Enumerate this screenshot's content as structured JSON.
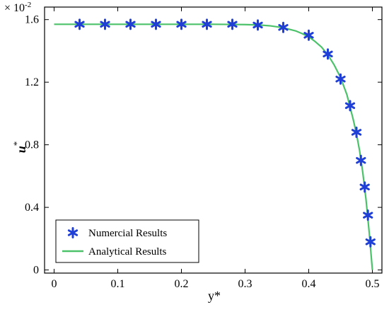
{
  "chart_data": {
    "type": "line",
    "ylabel": "u",
    "ylabel_superscript": "*",
    "xlabel": "y*",
    "y_multiplier": "× 10",
    "y_multiplier_exponent": "-2",
    "xlim": [
      -0.015,
      0.515
    ],
    "ylim": [
      -0.02,
      1.68
    ],
    "x_ticks": [
      0,
      0.1,
      0.2,
      0.3,
      0.4,
      0.5
    ],
    "x_tick_labels": [
      "0",
      "0.1",
      "0.2",
      "0.3",
      "0.4",
      "0.5"
    ],
    "y_ticks": [
      0,
      0.4,
      0.8,
      1.2,
      1.6
    ],
    "y_tick_labels": [
      "0",
      "0.4",
      "0.8",
      "1.2",
      "1.6"
    ],
    "grid": false,
    "legend_position": "bottom-left",
    "series": [
      {
        "name": "Numercial Results",
        "kind": "scatter",
        "marker": "asterisk",
        "color": "#1f3fd6",
        "x": [
          0.04,
          0.08,
          0.12,
          0.16,
          0.2,
          0.24,
          0.28,
          0.32,
          0.36,
          0.4,
          0.43,
          0.45,
          0.465,
          0.475,
          0.482,
          0.488,
          0.493,
          0.497
        ],
        "y": [
          1.57,
          1.57,
          1.57,
          1.57,
          1.57,
          1.57,
          1.57,
          1.565,
          1.55,
          1.5,
          1.38,
          1.22,
          1.05,
          0.88,
          0.7,
          0.53,
          0.35,
          0.18
        ]
      },
      {
        "name": "Analytical Results",
        "kind": "line",
        "color": "#4cc26a",
        "x": [
          0,
          0.05,
          0.1,
          0.15,
          0.2,
          0.25,
          0.28,
          0.3,
          0.32,
          0.34,
          0.36,
          0.38,
          0.39,
          0.4,
          0.41,
          0.42,
          0.43,
          0.44,
          0.45,
          0.46,
          0.47,
          0.475,
          0.48,
          0.485,
          0.49,
          0.495,
          0.5
        ],
        "y": [
          1.57,
          1.57,
          1.57,
          1.57,
          1.57,
          1.57,
          1.569,
          1.568,
          1.566,
          1.56,
          1.548,
          1.527,
          1.51,
          1.49,
          1.46,
          1.425,
          1.375,
          1.31,
          1.23,
          1.12,
          0.96,
          0.87,
          0.76,
          0.62,
          0.45,
          0.24,
          0.0
        ]
      }
    ]
  }
}
